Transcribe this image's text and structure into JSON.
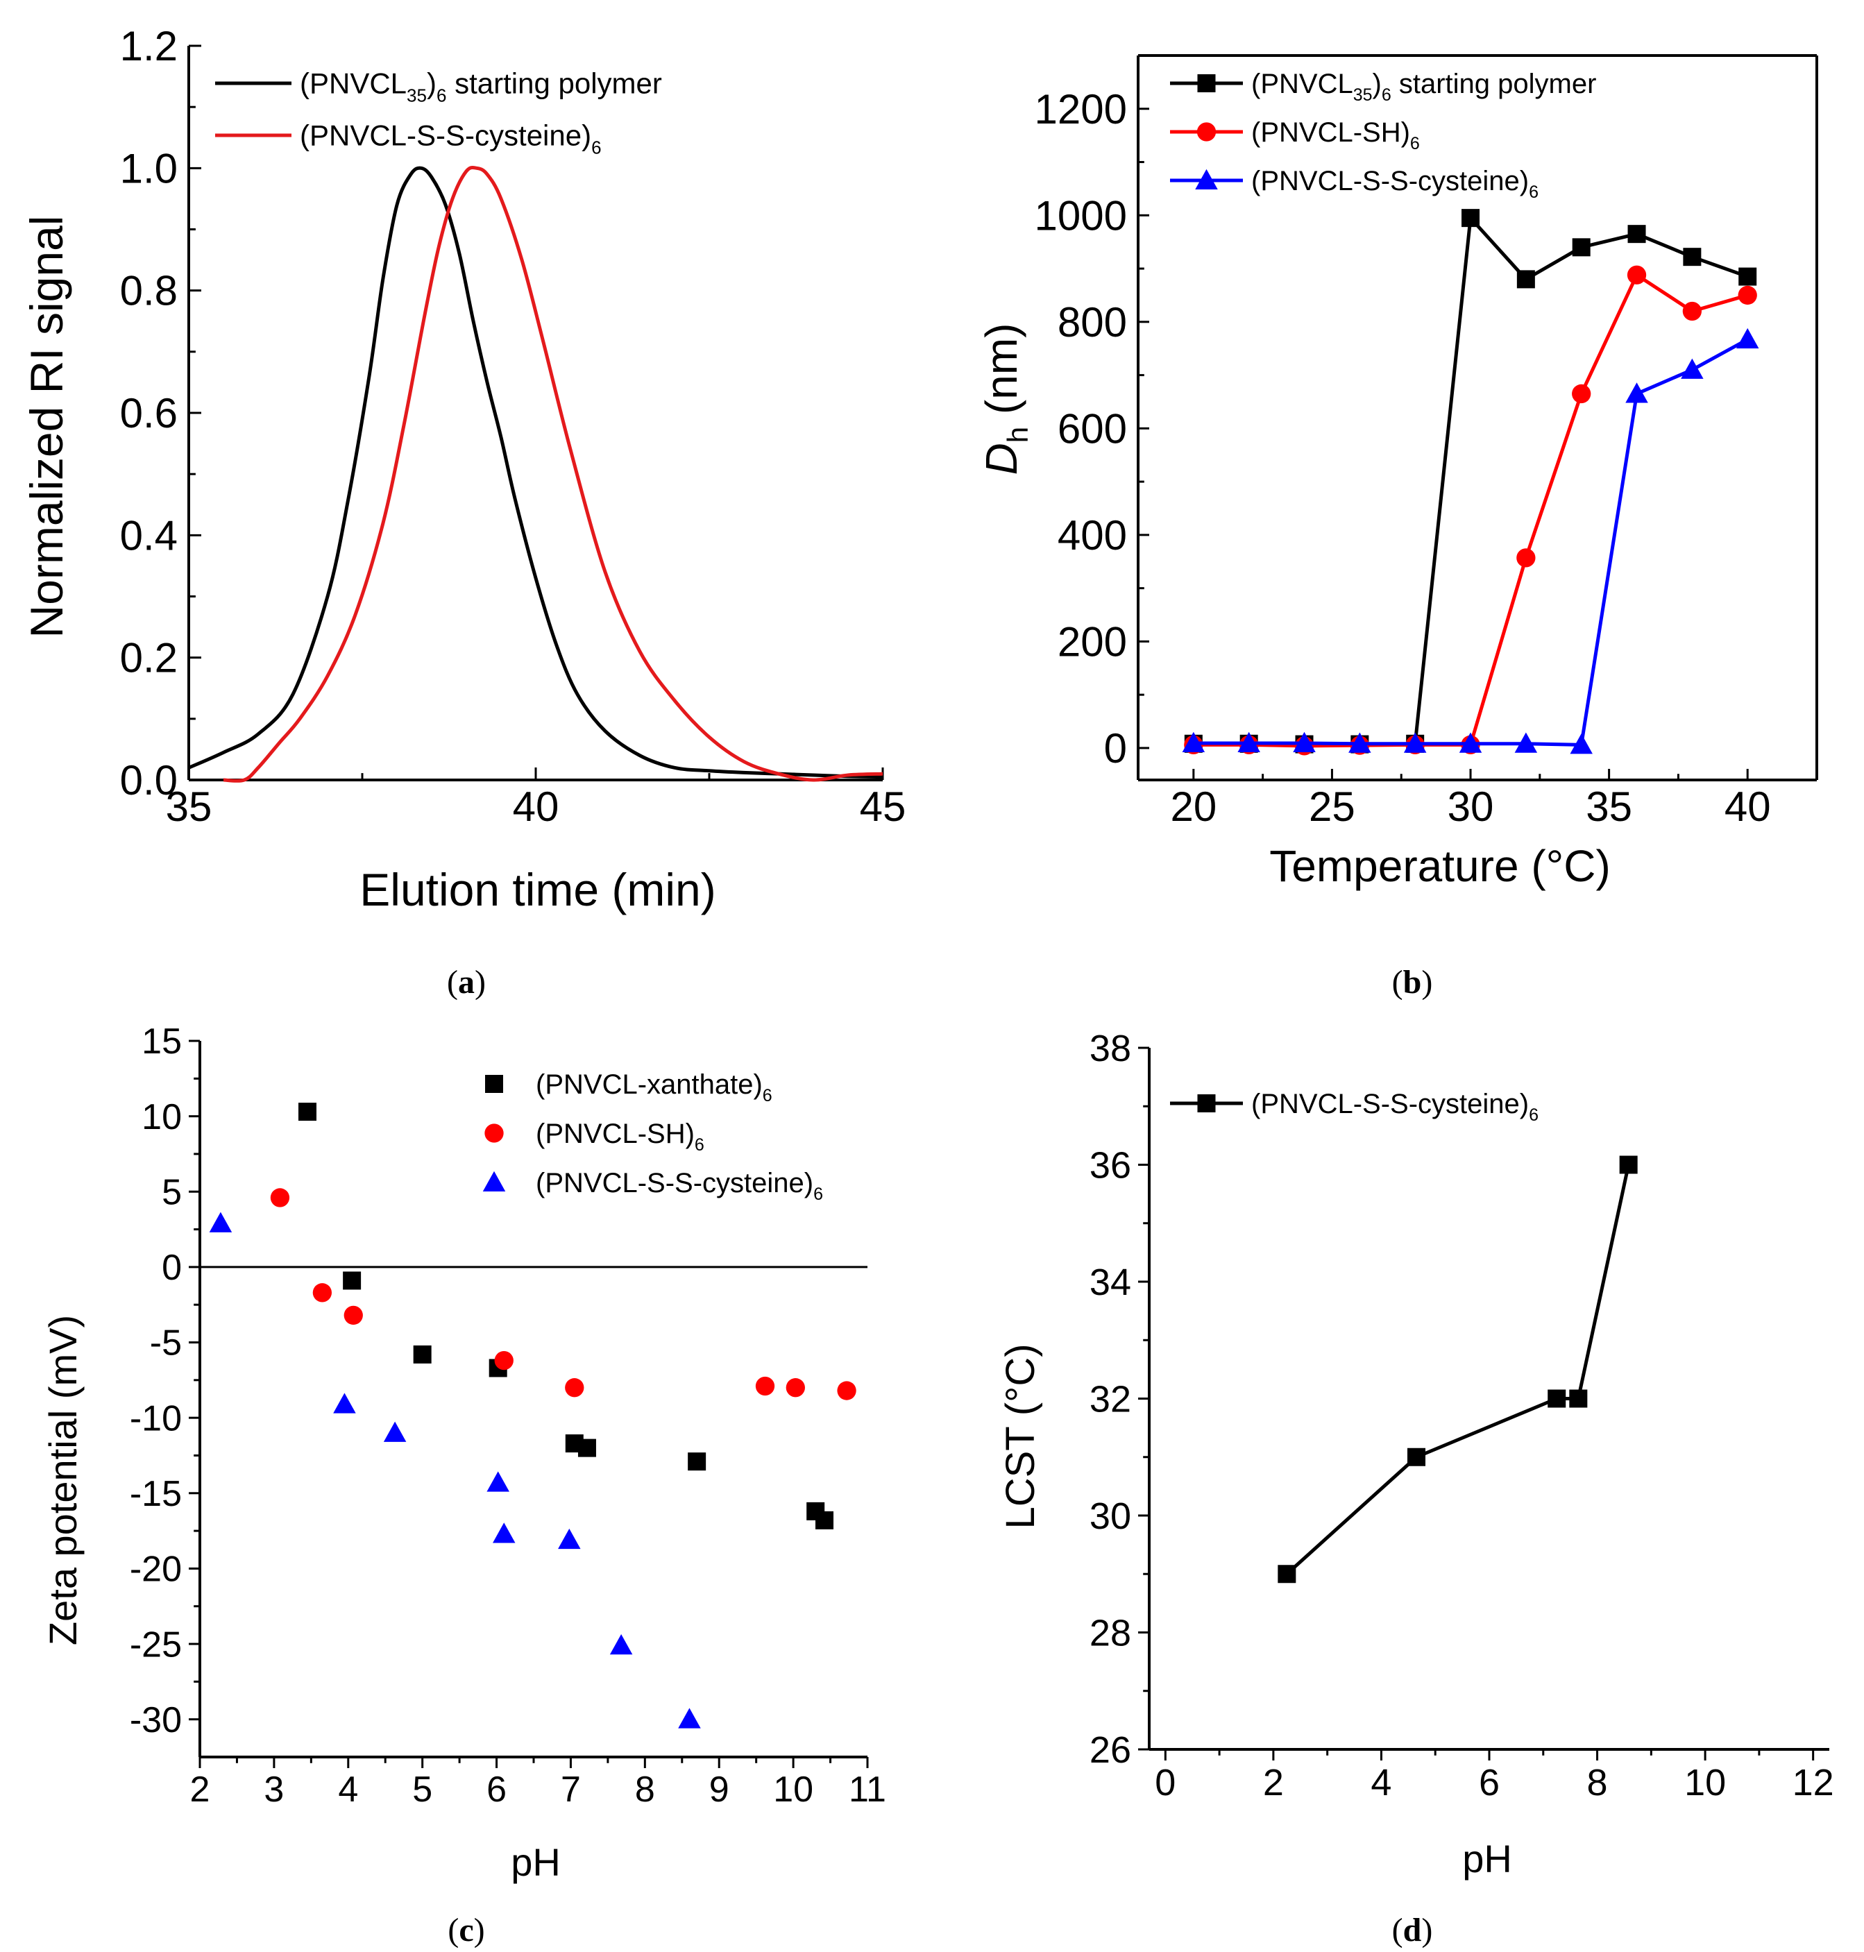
{
  "chart_data": [
    {
      "panel": "(a)",
      "panel_letter": "a",
      "type": "line",
      "xlabel": "Elution time (min)",
      "ylabel": "Normalized RI signal",
      "xlim": [
        35,
        45
      ],
      "ylim": [
        0,
        1.2
      ],
      "xticks": [
        "35",
        "40",
        "45"
      ],
      "yticks": [
        "0.0",
        "0.2",
        "0.4",
        "0.6",
        "0.8",
        "1.0",
        "1.2"
      ],
      "legend_placement": "top-left",
      "series": [
        {
          "name": "(PNVCL35)6 starting polymer",
          "label_parts": [
            "(PNVCL",
            "35",
            ")",
            "6",
            " starting polymer"
          ],
          "color": "#000000",
          "x": [
            35.0,
            35.5,
            36.0,
            36.5,
            37.0,
            37.3,
            37.6,
            37.8,
            38.0,
            38.2,
            38.35,
            38.5,
            38.7,
            38.9,
            39.1,
            39.3,
            39.5,
            39.7,
            40.0,
            40.3,
            40.6,
            41.0,
            41.5,
            42.0,
            42.5,
            43.0,
            43.5,
            44.0,
            44.5,
            45.0
          ],
          "y": [
            0.02,
            0.045,
            0.075,
            0.14,
            0.3,
            0.46,
            0.66,
            0.82,
            0.94,
            0.99,
            1.0,
            0.985,
            0.94,
            0.86,
            0.75,
            0.65,
            0.56,
            0.46,
            0.33,
            0.22,
            0.14,
            0.08,
            0.04,
            0.02,
            0.015,
            0.012,
            0.01,
            0.008,
            0.006,
            0.005
          ]
        },
        {
          "name": "(PNVCL-S-S-cysteine)6",
          "label_parts": [
            "(PNVCL-S-S-cysteine)",
            "6",
            "",
            "",
            ""
          ],
          "color": "#e41a1c",
          "x": [
            35.5,
            35.8,
            36.0,
            36.3,
            36.6,
            37.0,
            37.4,
            37.8,
            38.1,
            38.4,
            38.6,
            38.8,
            39.0,
            39.15,
            39.3,
            39.5,
            39.8,
            40.1,
            40.5,
            41.0,
            41.5,
            42.0,
            42.5,
            43.0,
            43.5,
            44.0,
            44.5,
            45.0
          ],
          "y": [
            0.0,
            0.0,
            0.02,
            0.06,
            0.1,
            0.17,
            0.27,
            0.42,
            0.58,
            0.76,
            0.87,
            0.95,
            0.995,
            1.0,
            0.99,
            0.95,
            0.85,
            0.72,
            0.54,
            0.34,
            0.21,
            0.13,
            0.07,
            0.03,
            0.01,
            0.0,
            0.008,
            0.01
          ]
        }
      ]
    },
    {
      "panel": "(b)",
      "panel_letter": "b",
      "type": "line",
      "xlabel": "Temperature (°C)",
      "ylabel": "Dh (nm)",
      "ylabel_parts": [
        "D",
        "h",
        " (nm)"
      ],
      "xlim": [
        18,
        42.5
      ],
      "ylim": [
        -60,
        1300
      ],
      "xticks": [
        "20",
        "25",
        "30",
        "35",
        "40"
      ],
      "yticks": [
        "0",
        "200",
        "400",
        "600",
        "800",
        "1000",
        "1200"
      ],
      "legend_placement": "top-left",
      "series": [
        {
          "name": "(PNVCL35)6 starting polymer",
          "label_parts": [
            "(PNVCL",
            "35",
            ")",
            "6",
            " starting polymer"
          ],
          "color": "#000000",
          "marker": "square",
          "x": [
            20,
            22,
            24,
            26,
            28,
            30,
            32,
            34,
            36,
            38,
            40
          ],
          "y": [
            8,
            8,
            7,
            7,
            8,
            995,
            880,
            940,
            965,
            922,
            885
          ]
        },
        {
          "name": "(PNVCL-SH)6",
          "label_parts": [
            "(PNVCL-SH)",
            "6",
            "",
            "",
            ""
          ],
          "color": "#ff0000",
          "marker": "circle",
          "x": [
            20,
            22,
            24,
            26,
            28,
            30,
            32,
            34,
            36,
            38,
            40
          ],
          "y": [
            6,
            6,
            4,
            5,
            6,
            6,
            357,
            665,
            888,
            820,
            850
          ]
        },
        {
          "name": "(PNVCL-S-S-cysteine)6",
          "label_parts": [
            "(PNVCL-S-S-cysteine)",
            "6",
            "",
            "",
            ""
          ],
          "color": "#0000ff",
          "marker": "triangle",
          "x": [
            20,
            22,
            24,
            26,
            28,
            30,
            32,
            34,
            36,
            38,
            40
          ],
          "y": [
            9,
            9,
            9,
            8,
            8,
            8,
            8,
            6,
            665,
            710,
            767
          ]
        }
      ]
    },
    {
      "panel": "(c)",
      "panel_letter": "c",
      "type": "scatter",
      "xlabel": "pH",
      "ylabel": "Zeta potential (mV)",
      "xlim": [
        2,
        11
      ],
      "ylim": [
        -32.5,
        15
      ],
      "xticks": [
        "2",
        "3",
        "4",
        "5",
        "6",
        "7",
        "8",
        "9",
        "10",
        "11"
      ],
      "yticks": [
        "-30",
        "-25",
        "-20",
        "-15",
        "-10",
        "-5",
        "0",
        "5",
        "10",
        "15"
      ],
      "zero_line": true,
      "legend_placement": "top-right",
      "series": [
        {
          "name": "(PNVCL-xanthate)6",
          "label_parts": [
            "(PNVCL-xanthate)",
            "6",
            "",
            "",
            ""
          ],
          "color": "#000000",
          "marker": "square",
          "x": [
            3.45,
            4.05,
            5.0,
            6.02,
            7.05,
            7.22,
            8.7,
            10.3,
            10.42
          ],
          "y": [
            10.3,
            -0.9,
            -5.8,
            -6.7,
            -11.7,
            -12.0,
            -12.9,
            -16.2,
            -16.8
          ]
        },
        {
          "name": "(PNVCL-SH)6",
          "label_parts": [
            "(PNVCL-SH)",
            "6",
            "",
            "",
            ""
          ],
          "color": "#ff0000",
          "marker": "circle",
          "x": [
            3.08,
            3.65,
            4.07,
            6.1,
            7.05,
            9.62,
            10.03,
            10.72
          ],
          "y": [
            4.6,
            -1.7,
            -3.2,
            -6.2,
            -8.0,
            -7.9,
            -8.0,
            -8.2
          ]
        },
        {
          "name": "(PNVCL-S-S-cysteine)6",
          "label_parts": [
            "(PNVCL-S-S-cysteine)",
            "6",
            "",
            "",
            ""
          ],
          "color": "#0000ff",
          "marker": "triangle",
          "x": [
            2.28,
            3.95,
            4.63,
            6.02,
            6.1,
            6.98,
            7.68,
            8.6
          ],
          "y": [
            2.9,
            -9.1,
            -11.0,
            -14.3,
            -17.7,
            -18.1,
            -25.1,
            -30.0
          ]
        }
      ]
    },
    {
      "panel": "(d)",
      "panel_letter": "d",
      "type": "line",
      "xlabel": "pH",
      "ylabel": "LCST (°C)",
      "xlim": [
        -0.3,
        12.3
      ],
      "ylim": [
        26,
        38
      ],
      "xticks": [
        "0",
        "2",
        "4",
        "6",
        "8",
        "10",
        "12"
      ],
      "yticks": [
        "26",
        "28",
        "30",
        "32",
        "34",
        "36",
        "38"
      ],
      "legend_placement": "top-left",
      "series": [
        {
          "name": "(PNVCL-S-S-cysteine)6",
          "label_parts": [
            "(PNVCL-S-S-cysteine)",
            "6",
            "",
            "",
            ""
          ],
          "color": "#000000",
          "marker": "square",
          "x": [
            2.25,
            4.65,
            7.25,
            7.65,
            8.58
          ],
          "y": [
            29,
            31,
            32,
            32,
            36
          ]
        }
      ]
    }
  ]
}
